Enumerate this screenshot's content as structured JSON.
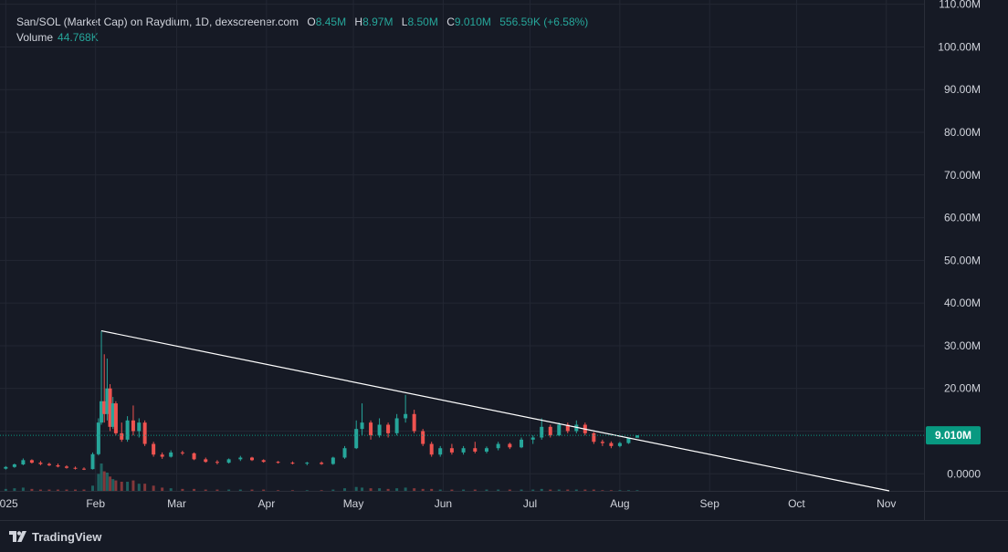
{
  "header": {
    "title": "San/SOL (Market Cap) on Raydium, 1D, dexscreener.com",
    "ohlc": [
      {
        "key": "O",
        "value": "8.45M"
      },
      {
        "key": "H",
        "value": "8.97M"
      },
      {
        "key": "L",
        "value": "8.50M"
      },
      {
        "key": "C",
        "value": "9.010M"
      }
    ],
    "change": "556.59K (+6.58%)",
    "volume_label": "Volume",
    "volume_value": "44.768K"
  },
  "brand": {
    "name": "TradingView",
    "icon": "tradingview-logo-icon"
  },
  "colors": {
    "up": "#26a69a",
    "down": "#ef5350",
    "background": "#161a25",
    "grid": "#232733",
    "trendline": "#ffffff",
    "last_price": "#089981"
  },
  "chart_data": {
    "type": "candlestick",
    "title": "San/SOL (Market Cap) on Raydium, 1D, dexscreener.com",
    "y_unit": "USD market cap",
    "ylim": [
      -4000000,
      111000000
    ],
    "y_ticks": [
      0,
      10000000,
      20000000,
      30000000,
      40000000,
      50000000,
      60000000,
      70000000,
      80000000,
      90000000,
      100000000,
      110000000
    ],
    "y_tick_labels": [
      "0.0000",
      "10.00M",
      "20.00M",
      "30.00M",
      "40.00M",
      "50.00M",
      "60.00M",
      "70.00M",
      "80.00M",
      "90.00M",
      "100.00M",
      "110.00M"
    ],
    "x_range": [
      "2024-12-30",
      "2025-11-14"
    ],
    "x_ticks": [
      {
        "date": "2025-01-01",
        "label": "2025"
      },
      {
        "date": "2025-02-01",
        "label": "Feb"
      },
      {
        "date": "2025-03-01",
        "label": "Mar"
      },
      {
        "date": "2025-04-01",
        "label": "Apr"
      },
      {
        "date": "2025-05-01",
        "label": "May"
      },
      {
        "date": "2025-06-01",
        "label": "Jun"
      },
      {
        "date": "2025-07-01",
        "label": "Jul"
      },
      {
        "date": "2025-08-01",
        "label": "Aug"
      },
      {
        "date": "2025-09-01",
        "label": "Sep"
      },
      {
        "date": "2025-10-01",
        "label": "Oct"
      },
      {
        "date": "2025-11-01",
        "label": "Nov"
      }
    ],
    "last_price": 9010000,
    "last_price_label": "9.010M",
    "grid": true,
    "trendline": {
      "start": [
        "2025-02-03",
        33500000
      ],
      "end": [
        "2025-11-02",
        -4000000
      ]
    },
    "candles": [
      [
        "2025-01-01",
        1.2,
        1.8,
        1.0,
        1.6,
        3
      ],
      [
        "2025-01-04",
        1.6,
        2.4,
        1.4,
        2.2,
        4
      ],
      [
        "2025-01-07",
        2.2,
        3.6,
        2.0,
        3.2,
        5
      ],
      [
        "2025-01-10",
        3.2,
        3.4,
        2.4,
        2.6,
        3
      ],
      [
        "2025-01-13",
        2.6,
        3.0,
        2.0,
        2.3,
        2
      ],
      [
        "2025-01-16",
        2.3,
        2.6,
        1.8,
        2.0,
        2
      ],
      [
        "2025-01-19",
        2.0,
        2.4,
        1.5,
        1.7,
        2
      ],
      [
        "2025-01-22",
        1.7,
        2.0,
        1.2,
        1.4,
        2
      ],
      [
        "2025-01-25",
        1.4,
        1.7,
        1.0,
        1.2,
        2
      ],
      [
        "2025-01-28",
        1.2,
        1.5,
        0.9,
        1.1,
        2
      ],
      [
        "2025-01-31",
        1.1,
        5.0,
        1.0,
        4.6,
        8
      ],
      [
        "2025-02-02",
        4.6,
        13.0,
        4.3,
        12.0,
        26
      ],
      [
        "2025-02-03",
        12.0,
        33.5,
        11.5,
        17.0,
        42
      ],
      [
        "2025-02-04",
        17.0,
        28.0,
        12.0,
        14.0,
        30
      ],
      [
        "2025-02-05",
        14.0,
        27.0,
        12.5,
        20.0,
        28
      ],
      [
        "2025-02-06",
        20.0,
        21.0,
        10.0,
        11.0,
        22
      ],
      [
        "2025-02-07",
        11.0,
        18.0,
        10.5,
        16.5,
        18
      ],
      [
        "2025-02-08",
        16.5,
        17.0,
        9.0,
        9.5,
        16
      ],
      [
        "2025-02-10",
        9.5,
        12.0,
        7.5,
        8.0,
        14
      ],
      [
        "2025-02-12",
        8.0,
        13.5,
        7.5,
        12.5,
        14
      ],
      [
        "2025-02-14",
        12.5,
        16.0,
        9.0,
        10.0,
        16
      ],
      [
        "2025-02-16",
        10.0,
        13.0,
        8.5,
        12.0,
        11
      ],
      [
        "2025-02-18",
        12.0,
        12.5,
        6.5,
        7.0,
        11
      ],
      [
        "2025-02-21",
        7.0,
        7.5,
        4.0,
        4.5,
        8
      ],
      [
        "2025-02-24",
        4.5,
        5.0,
        3.5,
        4.0,
        5
      ],
      [
        "2025-02-27",
        4.0,
        5.5,
        3.8,
        5.0,
        4
      ],
      [
        "2025-03-03",
        5.0,
        5.4,
        4.4,
        4.8,
        3
      ],
      [
        "2025-03-07",
        4.8,
        5.0,
        3.2,
        3.4,
        3
      ],
      [
        "2025-03-11",
        3.4,
        3.8,
        2.6,
        2.8,
        2
      ],
      [
        "2025-03-15",
        2.8,
        3.2,
        2.2,
        2.6,
        2
      ],
      [
        "2025-03-19",
        2.6,
        3.6,
        2.4,
        3.4,
        2
      ],
      [
        "2025-03-23",
        3.4,
        4.2,
        3.0,
        3.8,
        2
      ],
      [
        "2025-03-27",
        3.8,
        4.0,
        3.0,
        3.2,
        2
      ],
      [
        "2025-03-31",
        3.2,
        3.4,
        2.6,
        2.8,
        2
      ],
      [
        "2025-04-05",
        2.8,
        3.0,
        2.4,
        2.6,
        1
      ],
      [
        "2025-04-10",
        2.6,
        2.9,
        2.2,
        2.4,
        1
      ],
      [
        "2025-04-15",
        2.4,
        2.8,
        2.0,
        2.6,
        1
      ],
      [
        "2025-04-20",
        2.6,
        2.9,
        2.1,
        2.3,
        1
      ],
      [
        "2025-04-24",
        2.3,
        4.0,
        2.1,
        3.8,
        2
      ],
      [
        "2025-04-28",
        3.8,
        6.5,
        3.5,
        6.0,
        4
      ],
      [
        "2025-05-02",
        6.0,
        12.5,
        5.8,
        10.5,
        6
      ],
      [
        "2025-05-04",
        10.5,
        16.5,
        9.0,
        12.0,
        5
      ],
      [
        "2025-05-07",
        12.0,
        12.5,
        8.0,
        9.0,
        4
      ],
      [
        "2025-05-10",
        9.0,
        13.0,
        8.5,
        11.5,
        4
      ],
      [
        "2025-05-13",
        11.5,
        12.0,
        8.5,
        9.5,
        3
      ],
      [
        "2025-05-16",
        9.5,
        14.0,
        9.0,
        13.0,
        4
      ],
      [
        "2025-05-19",
        13.0,
        18.5,
        12.0,
        14.0,
        5
      ],
      [
        "2025-05-22",
        14.0,
        15.0,
        9.5,
        10.0,
        4
      ],
      [
        "2025-05-25",
        10.0,
        10.5,
        6.5,
        7.0,
        3
      ],
      [
        "2025-05-28",
        7.0,
        7.5,
        4.0,
        4.5,
        3
      ],
      [
        "2025-05-31",
        4.5,
        6.5,
        4.0,
        6.0,
        2
      ],
      [
        "2025-06-04",
        6.0,
        7.0,
        4.5,
        5.0,
        2
      ],
      [
        "2025-06-08",
        5.0,
        6.5,
        4.5,
        6.0,
        2
      ],
      [
        "2025-06-12",
        6.0,
        7.5,
        4.8,
        5.2,
        2
      ],
      [
        "2025-06-16",
        5.2,
        6.4,
        4.8,
        6.0,
        2
      ],
      [
        "2025-06-20",
        6.0,
        7.5,
        5.5,
        7.0,
        2
      ],
      [
        "2025-06-24",
        7.0,
        7.3,
        5.8,
        6.2,
        2
      ],
      [
        "2025-06-28",
        6.2,
        8.5,
        6.0,
        8.0,
        2
      ],
      [
        "2025-07-02",
        8.0,
        9.0,
        7.0,
        8.5,
        2
      ],
      [
        "2025-07-05",
        8.5,
        13.0,
        8.0,
        11.0,
        3
      ],
      [
        "2025-07-08",
        11.0,
        11.5,
        8.5,
        9.0,
        2
      ],
      [
        "2025-07-11",
        9.0,
        12.0,
        8.8,
        11.5,
        2
      ],
      [
        "2025-07-14",
        11.5,
        12.0,
        9.5,
        10.0,
        2
      ],
      [
        "2025-07-17",
        10.0,
        12.5,
        9.5,
        11.5,
        2
      ],
      [
        "2025-07-20",
        11.5,
        12.0,
        9.0,
        9.5,
        2
      ],
      [
        "2025-07-23",
        9.5,
        9.8,
        7.0,
        7.5,
        2
      ],
      [
        "2025-07-26",
        7.5,
        8.0,
        6.5,
        7.2,
        1
      ],
      [
        "2025-07-29",
        7.2,
        7.6,
        6.0,
        6.5,
        1
      ],
      [
        "2025-08-01",
        6.5,
        7.5,
        6.2,
        7.2,
        1
      ],
      [
        "2025-08-04",
        7.2,
        8.5,
        7.0,
        8.45,
        1
      ],
      [
        "2025-08-07",
        8.45,
        8.97,
        8.5,
        9.01,
        1
      ]
    ]
  }
}
